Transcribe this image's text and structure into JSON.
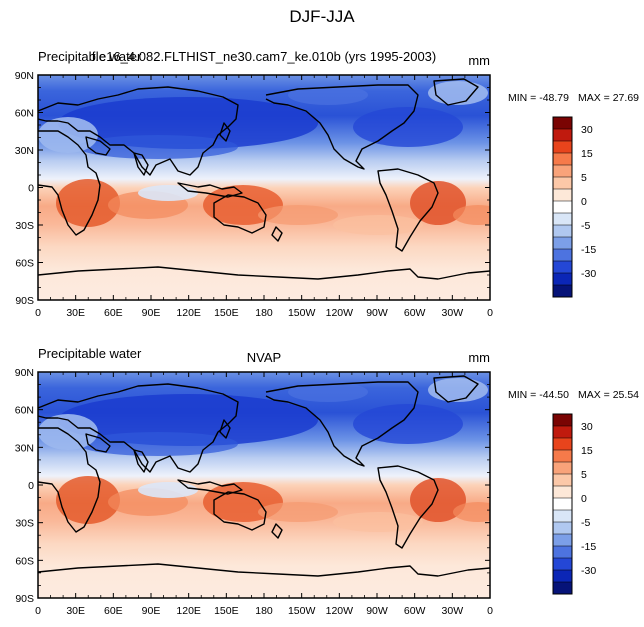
{
  "figure_title": "DJF-JJA",
  "chart_data": [
    {
      "type": "heatmap",
      "subtitle_left": "Precipitable water",
      "subtitle_center": "f.e16_4.082.FLTHIST_ne30.cam7_ke.010b (yrs 1995-2003)",
      "units": "mm",
      "min_label": "MIN = -48.79",
      "max_label": "MAX =  27.69",
      "min": -48.79,
      "max": 27.69,
      "xticks": [
        "0",
        "30E",
        "60E",
        "90E",
        "120E",
        "150E",
        "180",
        "150W",
        "120W",
        "90W",
        "60W",
        "30W",
        "0"
      ],
      "yticks": [
        "90N",
        "60N",
        "30N",
        "0",
        "30S",
        "60S",
        "90S"
      ],
      "colorbar_labels": [
        "30",
        "15",
        "5",
        "0",
        "-5",
        "-15",
        "-30"
      ],
      "colorbar_colors": [
        "#7a0403",
        "#c01a0e",
        "#e8441c",
        "#f67a4a",
        "#f9a37a",
        "#fcc8a8",
        "#fde8d8",
        "#ffffff",
        "#d9e6f7",
        "#b0c8f0",
        "#7c9fe8",
        "#4d73e0",
        "#2447d6",
        "#0b26b6",
        "#061378"
      ]
    },
    {
      "type": "heatmap",
      "subtitle_left": "Precipitable water",
      "subtitle_center": "NVAP",
      "units": "mm",
      "min_label": "MIN = -44.50",
      "max_label": "MAX =  25.54",
      "min": -44.5,
      "max": 25.54,
      "xticks": [
        "0",
        "30E",
        "60E",
        "90E",
        "120E",
        "150E",
        "180",
        "150W",
        "120W",
        "90W",
        "60W",
        "30W",
        "0"
      ],
      "yticks": [
        "90N",
        "60N",
        "30N",
        "0",
        "30S",
        "60S",
        "90S"
      ],
      "colorbar_labels": [
        "30",
        "15",
        "5",
        "0",
        "-5",
        "-15",
        "-30"
      ],
      "colorbar_colors": [
        "#7a0403",
        "#c01a0e",
        "#e8441c",
        "#f67a4a",
        "#f9a37a",
        "#fcc8a8",
        "#fde8d8",
        "#ffffff",
        "#d9e6f7",
        "#b0c8f0",
        "#7c9fe8",
        "#4d73e0",
        "#2447d6",
        "#0b26b6",
        "#061378"
      ]
    }
  ]
}
